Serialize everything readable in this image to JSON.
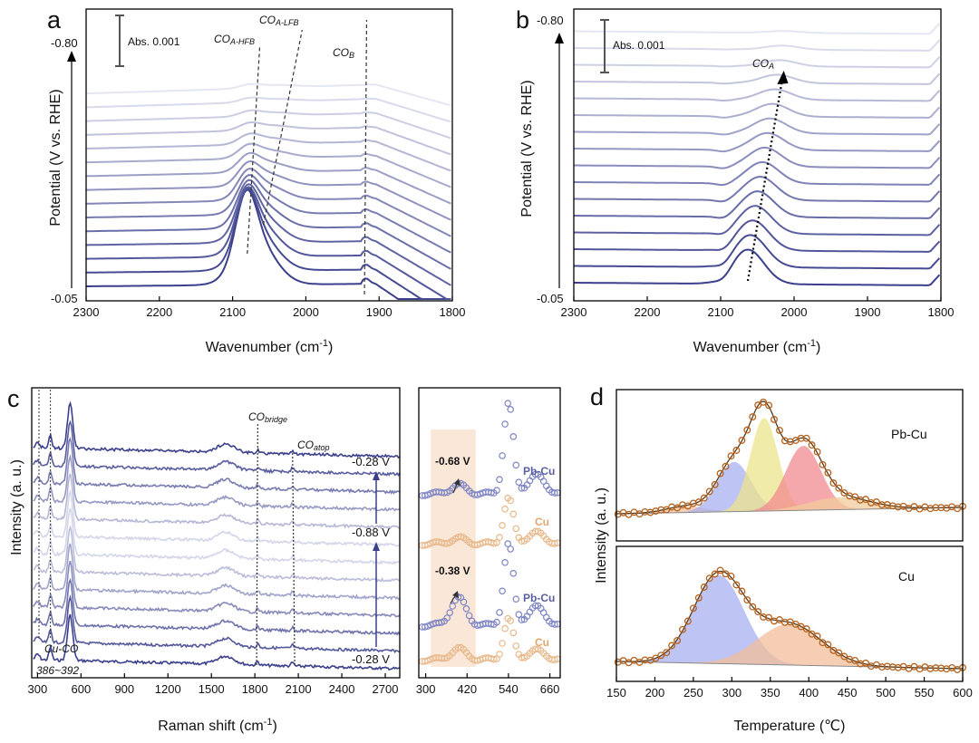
{
  "chart_data": [
    {
      "panel": "a",
      "type": "line",
      "xlabel": "Wavenumber (cm-1)",
      "ylabel": "Potential (V vs. RHE)",
      "xlim": [
        2300,
        1800
      ],
      "x_ticks": [
        2300,
        2200,
        2100,
        2000,
        1900,
        1800
      ],
      "potential_top": "-0.80",
      "potential_bottom": "-0.05",
      "scale_bar": "Abs. 0.001",
      "n_spectra": 15,
      "peaks": [
        {
          "name": "CO",
          "sub": "A-HFB",
          "position_start": 2075,
          "position_end": 2090
        },
        {
          "name": "CO",
          "sub": "A-LFB",
          "position_start": 2060,
          "position_end": 2020
        },
        {
          "name": "CO",
          "sub": "B",
          "position_start": 1920,
          "position_end": 1915
        }
      ]
    },
    {
      "panel": "b",
      "type": "line",
      "xlabel": "Wavenumber (cm-1)",
      "ylabel": "Potential (V vs. RHE)",
      "xlim": [
        2300,
        1800
      ],
      "x_ticks": [
        2300,
        2200,
        2100,
        2000,
        1900,
        1800
      ],
      "potential_top": "-0.80",
      "potential_bottom": "-0.05",
      "scale_bar": "Abs. 0.001",
      "n_spectra": 16,
      "peaks": [
        {
          "name": "CO",
          "sub": "A",
          "position_start": 2063,
          "position_end": 2013
        }
      ]
    },
    {
      "panel": "c",
      "type": "line",
      "xlabel": "Raman shift (cm-1)",
      "ylabel": "Intensity (a. u.)",
      "xlim": [
        260,
        2800
      ],
      "x_ticks": [
        300,
        600,
        900,
        1200,
        1500,
        1800,
        2100,
        2400,
        2700
      ],
      "potential_labels": [
        "-0.28 V",
        "-0.88 V",
        "-0.28 V"
      ],
      "annotations": [
        {
          "name": "CO",
          "sub": "bridge",
          "x": 1820
        },
        {
          "name": "CO",
          "sub": "atop",
          "x": 2060
        }
      ],
      "band_label": "Cu-CO",
      "band_range": "386~392",
      "inset": {
        "x_ticks": [
          300,
          420,
          540,
          660
        ],
        "xlim": [
          280,
          690
        ],
        "highlight_range": [
          315,
          445
        ],
        "groups": [
          {
            "potential": "-0.68 V",
            "series": [
              "Pb-Cu",
              "Cu"
            ]
          },
          {
            "potential": "-0.38 V",
            "series": [
              "Pb-Cu",
              "Cu"
            ]
          }
        ]
      }
    },
    {
      "panel": "d",
      "type": "line",
      "xlabel": "Temperature (℃)",
      "ylabel": "Intensity (a. u.)",
      "xlim": [
        150,
        600
      ],
      "x_ticks": [
        150,
        200,
        250,
        300,
        350,
        400,
        450,
        500,
        550,
        600
      ],
      "subplots": [
        {
          "label": "Pb-Cu",
          "fit_peaks": [
            {
              "center": 240,
              "height": 0.05,
              "width": 25,
              "color": "#f2bd9a"
            },
            {
              "center": 303,
              "height": 0.4,
              "width": 22,
              "color": "#a8b0f0"
            },
            {
              "center": 342,
              "height": 0.75,
              "width": 18,
              "color": "#ece48c"
            },
            {
              "center": 393,
              "height": 0.52,
              "width": 23,
              "color": "#f28b8f"
            },
            {
              "center": 440,
              "height": 0.1,
              "width": 40,
              "color": "#f2cc9e"
            }
          ]
        },
        {
          "label": "Cu",
          "fit_peaks": [
            {
              "center": 283,
              "height": 0.82,
              "width": 33,
              "color": "#a8b0f0"
            },
            {
              "center": 375,
              "height": 0.38,
              "width": 42,
              "color": "#f2bd9a"
            }
          ]
        }
      ]
    }
  ],
  "labels": {
    "panel_a": "a",
    "panel_b": "b",
    "panel_c": "c",
    "panel_d": "d",
    "a_x_label": "Wavenumber (cm",
    "a_x_sup": "-1",
    "a_x_close": ")",
    "b_x_label": "Wavenumber (cm",
    "b_x_sup": "-1",
    "b_x_close": ")",
    "c_x_label": "Raman shift (cm",
    "c_x_sup": "-1",
    "c_x_close": ")",
    "y_potential": "Potential (V vs. RHE)",
    "y_intensity": "Intensity (a. u.)",
    "d_x_label": "Temperature (℃)"
  },
  "colors": {
    "dark": "#3b3f8c",
    "light": "#e4e6f2",
    "copper": "#e8b88a",
    "tpd_marker": "#b5611c",
    "highlight": "#f9e3d0"
  }
}
